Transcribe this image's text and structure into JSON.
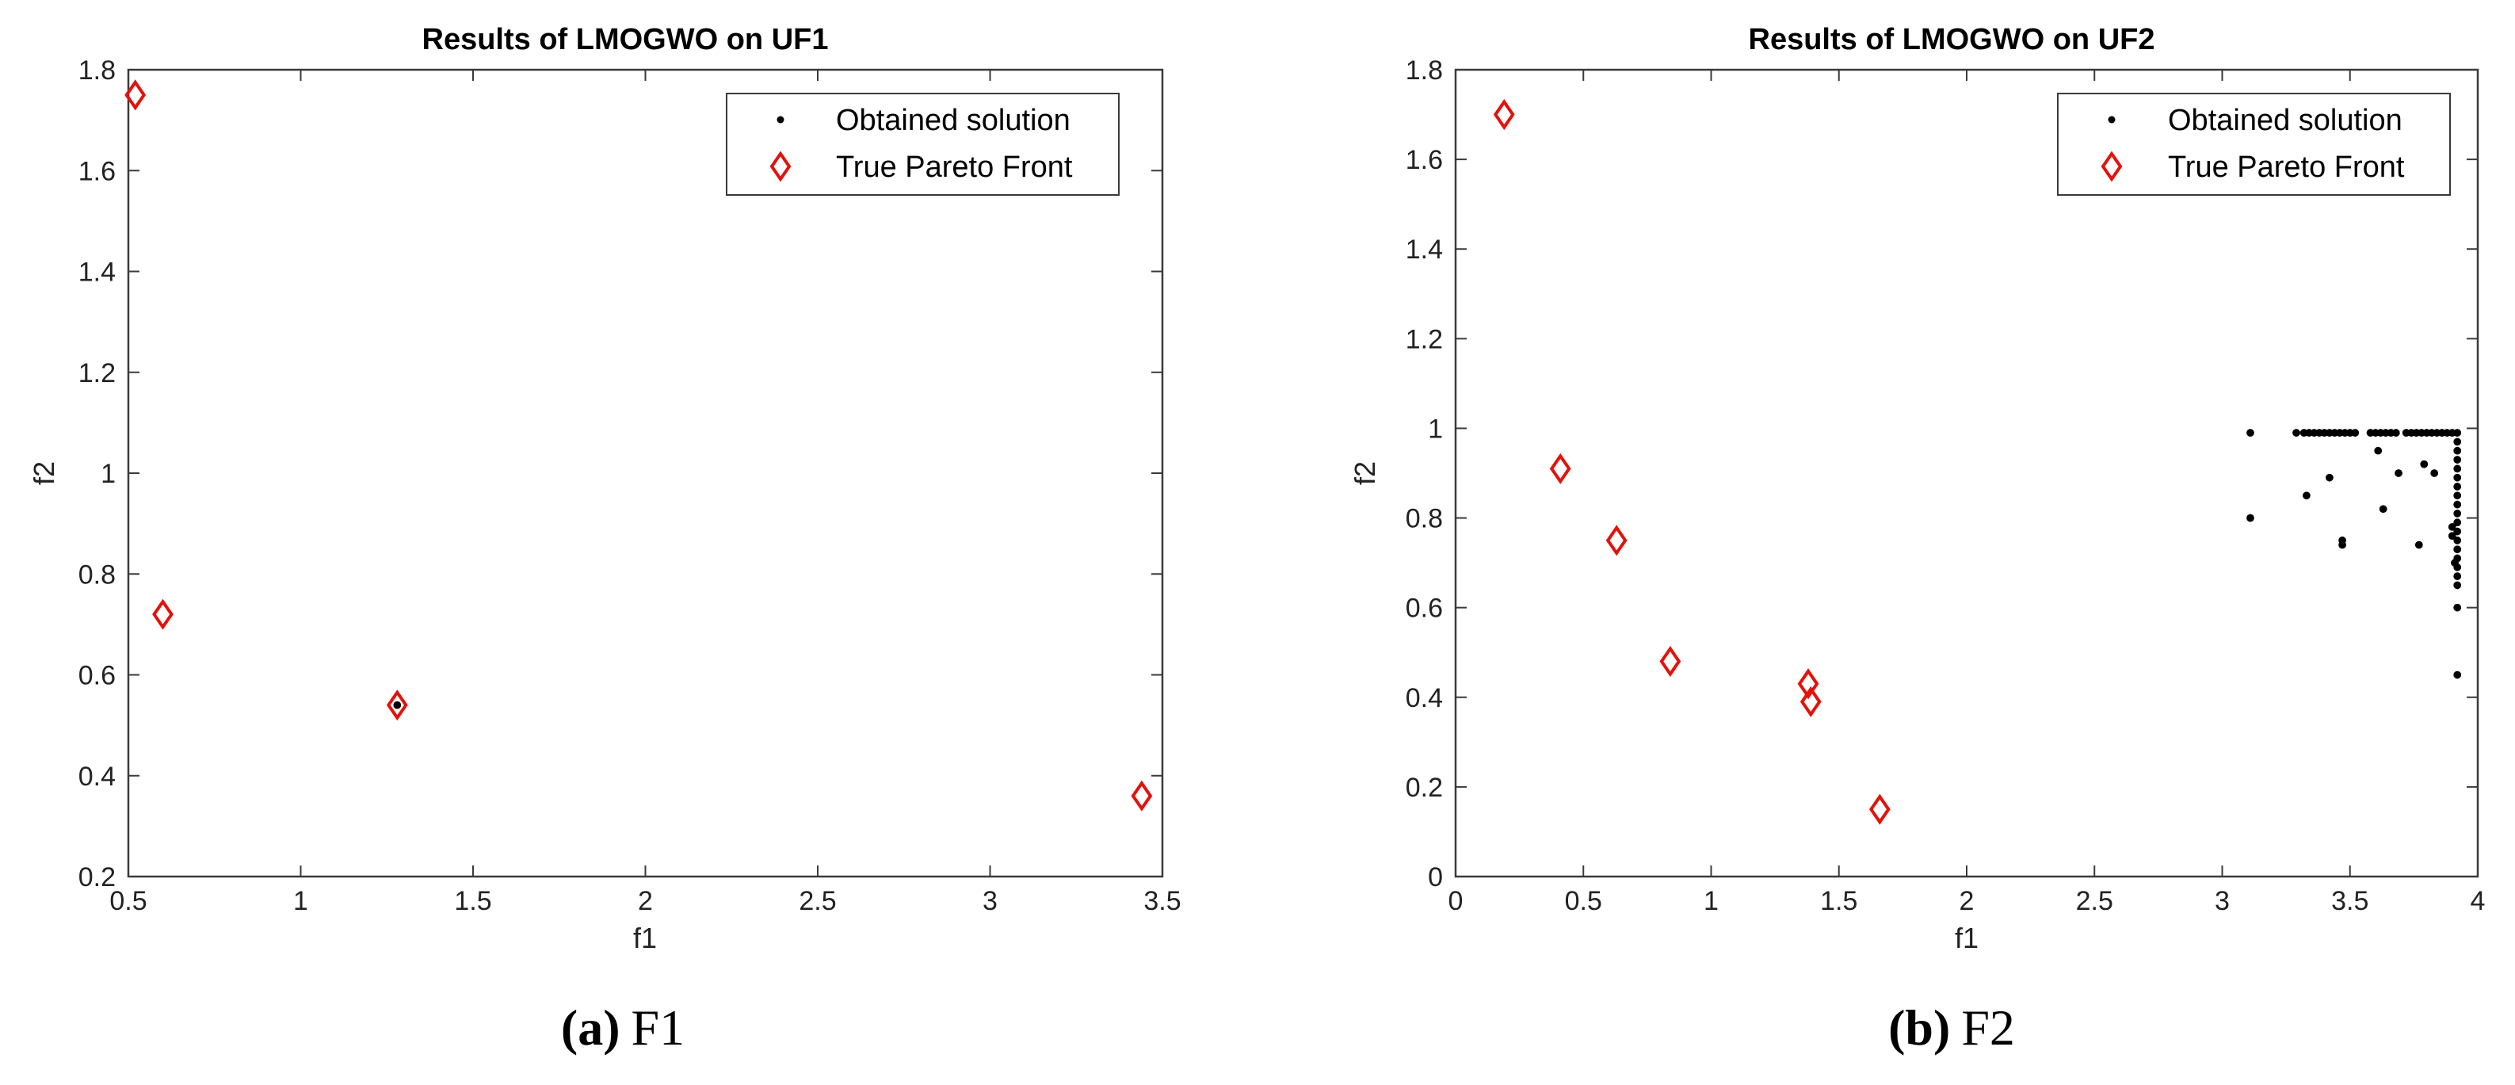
{
  "chart_data": [
    {
      "type": "scatter",
      "title": "Results of LMOGWO on UF1",
      "xlabel": "f1",
      "ylabel": "f2",
      "xlim": [
        0.5,
        3.5
      ],
      "ylim": [
        0.2,
        1.8
      ],
      "xticks": [
        0.5,
        1,
        1.5,
        2,
        2.5,
        3,
        3.5
      ],
      "xtick_labels": [
        "0.5",
        "1",
        "1.5",
        "2",
        "2.5",
        "3",
        "3.5"
      ],
      "yticks": [
        0.2,
        0.4,
        0.6,
        0.8,
        1,
        1.2,
        1.4,
        1.6,
        1.8
      ],
      "ytick_labels": [
        "0.2",
        "0.4",
        "0.6",
        "0.8",
        "1",
        "1.2",
        "1.4",
        "1.6",
        "1.8"
      ],
      "grid": false,
      "legend_position": "top-right",
      "series": [
        {
          "name": "Obtained solution",
          "marker": "dot",
          "color": "#000000",
          "points": [
            [
              1.28,
              0.54
            ]
          ]
        },
        {
          "name": "True Pareto Front",
          "marker": "diamond",
          "color": "#e3120b",
          "points": [
            [
              0.52,
              1.75
            ],
            [
              0.6,
              0.72
            ],
            [
              1.28,
              0.54
            ],
            [
              3.44,
              0.36
            ]
          ]
        }
      ],
      "caption": {
        "letter": "(a)",
        "text": "F1"
      }
    },
    {
      "type": "scatter",
      "title": "Results of LMOGWO on UF2",
      "xlabel": "f1",
      "ylabel": "f2",
      "xlim": [
        0,
        4
      ],
      "ylim": [
        0,
        1.8
      ],
      "xticks": [
        0,
        0.5,
        1,
        1.5,
        2,
        2.5,
        3,
        3.5,
        4
      ],
      "xtick_labels": [
        "0",
        "0.5",
        "1",
        "1.5",
        "2",
        "2.5",
        "3",
        "3.5",
        "4"
      ],
      "yticks": [
        0,
        0.2,
        0.4,
        0.6,
        0.8,
        1,
        1.2,
        1.4,
        1.6,
        1.8
      ],
      "ytick_labels": [
        "0",
        "0.2",
        "0.4",
        "0.6",
        "0.8",
        "1",
        "1.2",
        "1.4",
        "1.6",
        "1.8"
      ],
      "grid": false,
      "legend_position": "top-right",
      "series": [
        {
          "name": "Obtained solution",
          "marker": "dot",
          "color": "#000000",
          "points": [
            [
              3.11,
              0.99
            ],
            [
              3.11,
              0.8
            ],
            [
              3.29,
              0.99
            ],
            [
              3.32,
              0.99
            ],
            [
              3.34,
              0.99
            ],
            [
              3.36,
              0.99
            ],
            [
              3.38,
              0.99
            ],
            [
              3.4,
              0.99
            ],
            [
              3.42,
              0.99
            ],
            [
              3.44,
              0.99
            ],
            [
              3.46,
              0.99
            ],
            [
              3.48,
              0.99
            ],
            [
              3.5,
              0.99
            ],
            [
              3.52,
              0.99
            ],
            [
              3.58,
              0.99
            ],
            [
              3.6,
              0.99
            ],
            [
              3.62,
              0.99
            ],
            [
              3.64,
              0.99
            ],
            [
              3.66,
              0.99
            ],
            [
              3.68,
              0.99
            ],
            [
              3.72,
              0.99
            ],
            [
              3.74,
              0.99
            ],
            [
              3.76,
              0.99
            ],
            [
              3.78,
              0.99
            ],
            [
              3.8,
              0.99
            ],
            [
              3.82,
              0.99
            ],
            [
              3.84,
              0.99
            ],
            [
              3.86,
              0.99
            ],
            [
              3.88,
              0.99
            ],
            [
              3.9,
              0.99
            ],
            [
              3.92,
              0.99
            ],
            [
              3.33,
              0.85
            ],
            [
              3.42,
              0.89
            ],
            [
              3.47,
              0.75
            ],
            [
              3.47,
              0.74
            ],
            [
              3.61,
              0.95
            ],
            [
              3.63,
              0.82
            ],
            [
              3.69,
              0.9
            ],
            [
              3.77,
              0.74
            ],
            [
              3.79,
              0.92
            ],
            [
              3.83,
              0.9
            ],
            [
              3.92,
              0.97
            ],
            [
              3.92,
              0.95
            ],
            [
              3.92,
              0.93
            ],
            [
              3.92,
              0.91
            ],
            [
              3.92,
              0.89
            ],
            [
              3.92,
              0.87
            ],
            [
              3.92,
              0.85
            ],
            [
              3.92,
              0.83
            ],
            [
              3.92,
              0.81
            ],
            [
              3.92,
              0.79
            ],
            [
              3.92,
              0.77
            ],
            [
              3.92,
              0.75
            ],
            [
              3.92,
              0.73
            ],
            [
              3.92,
              0.71
            ],
            [
              3.92,
              0.69
            ],
            [
              3.92,
              0.67
            ],
            [
              3.92,
              0.65
            ],
            [
              3.9,
              0.78
            ],
            [
              3.9,
              0.76
            ],
            [
              3.91,
              0.7
            ],
            [
              3.92,
              0.6
            ],
            [
              3.92,
              0.45
            ]
          ]
        },
        {
          "name": "True Pareto Front",
          "marker": "diamond",
          "color": "#e3120b",
          "points": [
            [
              0.19,
              1.7
            ],
            [
              0.41,
              0.91
            ],
            [
              0.63,
              0.75
            ],
            [
              0.84,
              0.48
            ],
            [
              1.38,
              0.43
            ],
            [
              1.39,
              0.39
            ],
            [
              1.66,
              0.15
            ]
          ]
        }
      ],
      "caption": {
        "letter": "(b)",
        "text": "F2"
      }
    }
  ]
}
